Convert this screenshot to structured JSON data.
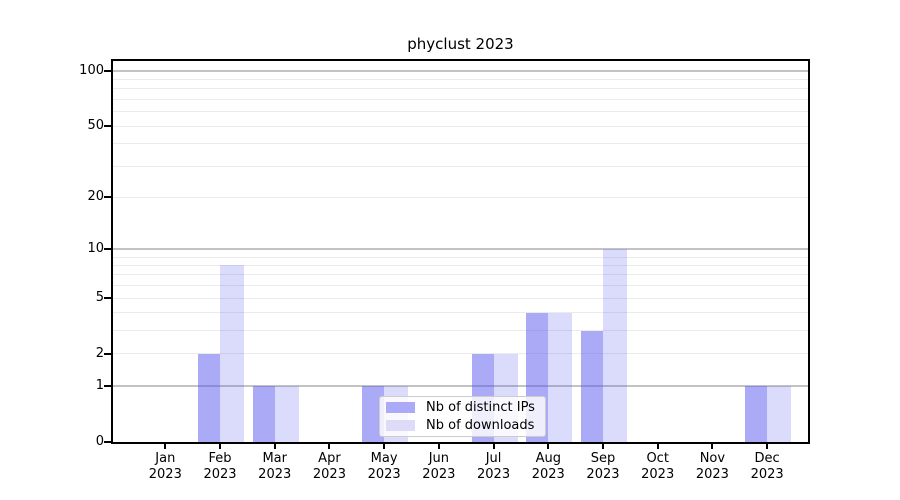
{
  "title": "phyclust 2023",
  "legend": {
    "items": [
      {
        "label": "Nb of distinct IPs",
        "swatch": "#aaaaf7"
      },
      {
        "label": "Nb of downloads",
        "swatch": "#dcdcf8"
      }
    ]
  },
  "chart_data": {
    "type": "bar",
    "title": "phyclust 2023",
    "categories": [
      {
        "month": "Jan",
        "year": "2023"
      },
      {
        "month": "Feb",
        "year": "2023"
      },
      {
        "month": "Mar",
        "year": "2023"
      },
      {
        "month": "Apr",
        "year": "2023"
      },
      {
        "month": "May",
        "year": "2023"
      },
      {
        "month": "Jun",
        "year": "2023"
      },
      {
        "month": "Jul",
        "year": "2023"
      },
      {
        "month": "Aug",
        "year": "2023"
      },
      {
        "month": "Sep",
        "year": "2023"
      },
      {
        "month": "Oct",
        "year": "2023"
      },
      {
        "month": "Nov",
        "year": "2023"
      },
      {
        "month": "Dec",
        "year": "2023"
      }
    ],
    "series": [
      {
        "name": "Nb of distinct IPs",
        "color": "rgba(85,85,238,0.50)",
        "swatch": "#aaaaf7",
        "values": [
          0,
          2,
          1,
          0,
          1,
          0,
          2,
          4,
          3,
          0,
          0,
          1
        ]
      },
      {
        "name": "Nb of downloads",
        "color": "rgba(85,85,238,0.21)",
        "swatch": "#dcdcf8",
        "values": [
          0,
          8,
          1,
          0,
          1,
          0,
          2,
          4,
          10,
          0,
          0,
          1
        ]
      }
    ],
    "xlabel": "",
    "ylabel": "",
    "y_scale": "log10(1+value)",
    "ylim": [
      0,
      115
    ],
    "y_tick_labels": [
      "100",
      "50",
      "20",
      "10",
      "5",
      "2",
      "1",
      "0"
    ],
    "y_ticks": [
      0,
      1,
      2,
      5,
      10,
      20,
      50,
      100
    ],
    "major_gridlines": [
      1,
      10,
      100
    ],
    "minor_gridlines": [
      2,
      3,
      4,
      5,
      6,
      7,
      8,
      9,
      20,
      30,
      40,
      50,
      60,
      70,
      80,
      90
    ],
    "grid": true,
    "grid_major_color": "#c3c3c3",
    "grid_minor_color": "#ebebeb",
    "legend_position": "lower center"
  }
}
